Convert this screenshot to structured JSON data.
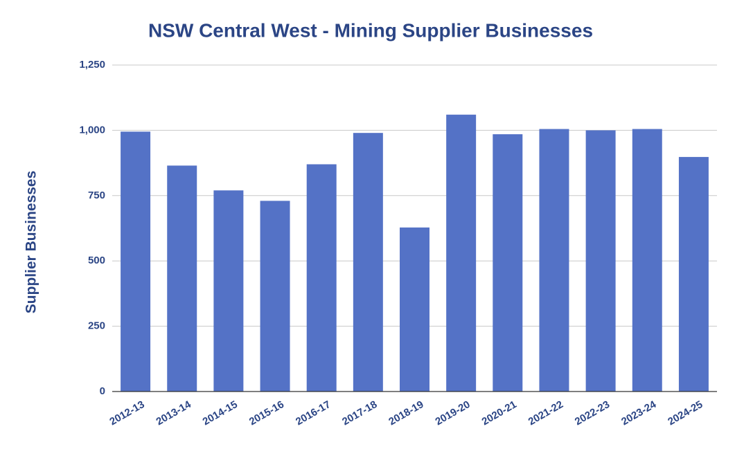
{
  "chart_data": {
    "type": "bar",
    "title": "NSW Central West - Mining Supplier Businesses",
    "y_label": "Supplier Businesses",
    "categories": [
      "2012-13",
      "2013-14",
      "2014-15",
      "2015-16",
      "2016-17",
      "2017-18",
      "2018-19",
      "2019-20",
      "2020-21",
      "2021-22",
      "2022-23",
      "2023-24",
      "2024-25"
    ],
    "values": [
      995,
      865,
      770,
      730,
      870,
      990,
      628,
      1060,
      985,
      1005,
      1000,
      1005,
      898
    ],
    "color": "#5472c6",
    "ylim": [
      0,
      1250
    ],
    "yticks": [
      0,
      250,
      500,
      750,
      {
        "value": 1000,
        "label": "1,000"
      },
      {
        "value": 1250,
        "label": "1,250"
      }
    ],
    "grid": true
  }
}
